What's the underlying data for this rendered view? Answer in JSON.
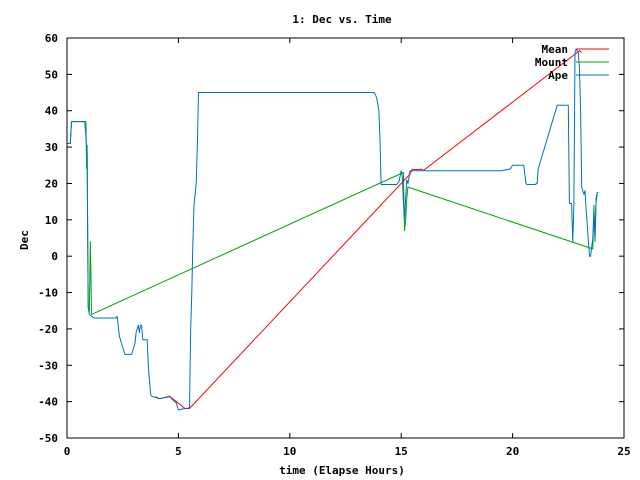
{
  "chart_data": {
    "type": "line",
    "title": "1: Dec vs. Time",
    "xlabel": "time (Elapse Hours)",
    "ylabel": "Dec",
    "xlim": [
      0,
      25
    ],
    "ylim": [
      -50,
      60
    ],
    "xticks": [
      0,
      5,
      10,
      15,
      20,
      25
    ],
    "yticks": [
      -50,
      -40,
      -30,
      -20,
      -10,
      0,
      10,
      20,
      30,
      40,
      50,
      60
    ],
    "grid": false,
    "legend_position": "top-right",
    "series": [
      {
        "name": "Mean",
        "color": "#ff0000",
        "x": [
          4.0,
          4.1,
          4.3,
          4.5,
          4.6,
          5.3,
          5.5,
          15.4,
          15.5,
          15.7,
          15.9,
          16.0,
          22.9,
          23.0,
          23.1
        ],
        "y": [
          -38.6,
          -39.2,
          -39.0,
          -38.7,
          -38.5,
          -41.9,
          -41.9,
          22.6,
          23.9,
          23.8,
          23.9,
          23.6,
          56.0,
          56.5,
          56.0
        ]
      },
      {
        "name": "Mount",
        "color": "#00a000",
        "x": [
          0.0,
          0.15,
          0.2,
          0.85,
          0.88,
          0.9,
          0.92,
          0.95,
          1.0,
          1.05,
          1.1,
          15.1,
          15.12,
          15.15,
          15.2,
          15.25,
          15.3,
          23.6,
          23.65,
          23.7,
          23.75,
          23.8
        ],
        "y": [
          31.0,
          31.0,
          37.0,
          37.0,
          24.0,
          30.5,
          14.0,
          -14.0,
          -15.5,
          4.0,
          -16.0,
          23.0,
          16.0,
          7.0,
          10.0,
          16.0,
          19.0,
          2.0,
          14.0,
          4.0,
          15.0,
          17.0
        ]
      },
      {
        "name": "Ape",
        "color": "#0070c0",
        "x": [
          0.0,
          0.15,
          0.2,
          0.8,
          0.85,
          0.9,
          0.95,
          1.0,
          1.2,
          1.5,
          2.0,
          2.2,
          2.25,
          2.3,
          2.35,
          2.4,
          2.5,
          2.6,
          2.7,
          2.8,
          2.9,
          3.0,
          3.05,
          3.1,
          3.2,
          3.25,
          3.3,
          3.35,
          3.4,
          3.5,
          3.6,
          3.62,
          3.65,
          3.7,
          3.75,
          3.8,
          4.0,
          4.2,
          4.3,
          4.4,
          4.5,
          4.6,
          4.8,
          4.9,
          5.0,
          5.2,
          5.4,
          5.5,
          5.55,
          5.6,
          5.65,
          5.7,
          5.8,
          5.85,
          5.9,
          13.8,
          13.9,
          14.0,
          14.05,
          14.1,
          14.5,
          14.8,
          14.9,
          15.0,
          15.05,
          15.1,
          15.15,
          15.2,
          15.25,
          15.3,
          15.4,
          15.5,
          15.8,
          16.0,
          16.5,
          17.0,
          17.5,
          18.0,
          18.5,
          19.0,
          19.5,
          19.9,
          20.0,
          20.5,
          20.6,
          20.65,
          21.0,
          21.1,
          21.15,
          22.0,
          22.05,
          22.1,
          22.5,
          22.55,
          22.6,
          22.65,
          22.7,
          22.75,
          22.8,
          22.85,
          22.9,
          22.95,
          23.0,
          23.05,
          23.1,
          23.2,
          23.25,
          23.3,
          23.45,
          23.5,
          23.6,
          23.65,
          23.7,
          23.75,
          23.8,
          23.85
        ],
        "y": [
          31.0,
          31.0,
          37.0,
          37.0,
          33.0,
          28.0,
          -14.0,
          -16.0,
          -17.0,
          -17.0,
          -17.0,
          -17.0,
          -16.5,
          -19.0,
          -22.0,
          -23.0,
          -25.0,
          -27.0,
          -27.0,
          -27.0,
          -27.0,
          -25.0,
          -24.0,
          -21.0,
          -19.0,
          -21.0,
          -19.0,
          -19.0,
          -23.0,
          -23.0,
          -23.0,
          -26.0,
          -30.0,
          -34.0,
          -38.0,
          -38.5,
          -38.9,
          -39.2,
          -39.0,
          -38.9,
          -38.8,
          -38.6,
          -39.8,
          -40.3,
          -42.3,
          -42.0,
          -41.8,
          -41.7,
          -20.0,
          -10.0,
          4.0,
          14.0,
          20.0,
          30.0,
          45.0,
          45.0,
          43.5,
          40.0,
          32.0,
          19.7,
          19.7,
          19.7,
          20.5,
          23.5,
          22.0,
          15.0,
          10.0,
          16.0,
          21.0,
          20.0,
          23.5,
          23.5,
          23.5,
          23.5,
          23.5,
          23.5,
          23.5,
          23.5,
          23.5,
          23.5,
          23.5,
          24.0,
          25.0,
          25.0,
          20.0,
          19.7,
          19.7,
          20.0,
          24.0,
          41.5,
          41.5,
          41.5,
          41.5,
          14.5,
          14.5,
          14.5,
          4.0,
          14.5,
          56.0,
          57.0,
          56.5,
          56.0,
          52.0,
          40.0,
          19.0,
          17.0,
          18.0,
          13.0,
          0.0,
          0.0,
          5.0,
          12.0,
          5.0,
          16.0,
          17.5,
          17.5
        ]
      }
    ]
  }
}
